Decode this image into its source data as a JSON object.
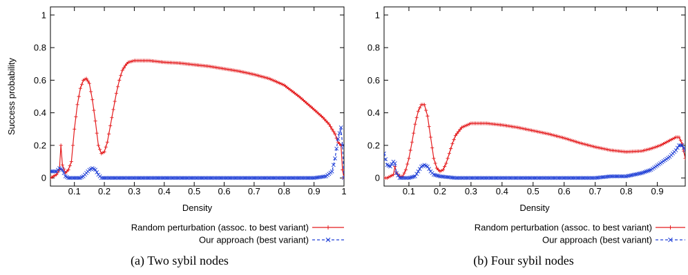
{
  "chart_data": [
    {
      "type": "line",
      "caption": "(a)  Two sybil nodes",
      "xlabel": "Density",
      "ylabel": "Success probability",
      "xlim": [
        0.02,
        1.0
      ],
      "ylim": [
        -0.05,
        1.05
      ],
      "x_ticks": [
        "0.1",
        "0.2",
        "0.3",
        "0.4",
        "0.5",
        "0.6",
        "0.7",
        "0.8",
        "0.9",
        "1"
      ],
      "y_ticks": [
        "0",
        "0.2",
        "0.4",
        "0.6",
        "0.8",
        "1"
      ],
      "legend_position": "bottom-right, below plot",
      "series": [
        {
          "name": "Random perturbation (assoc. to best variant)",
          "color": "#e41a1c",
          "marker": "plus",
          "dash": "solid",
          "points": [
            [
              0.02,
              0.0
            ],
            [
              0.03,
              0.01
            ],
            [
              0.04,
              0.02
            ],
            [
              0.05,
              0.05
            ],
            [
              0.055,
              0.2
            ],
            [
              0.06,
              0.08
            ],
            [
              0.07,
              0.03
            ],
            [
              0.08,
              0.05
            ],
            [
              0.09,
              0.1
            ],
            [
              0.1,
              0.3
            ],
            [
              0.11,
              0.45
            ],
            [
              0.12,
              0.55
            ],
            [
              0.13,
              0.6
            ],
            [
              0.14,
              0.61
            ],
            [
              0.15,
              0.58
            ],
            [
              0.16,
              0.48
            ],
            [
              0.17,
              0.35
            ],
            [
              0.18,
              0.2
            ],
            [
              0.19,
              0.15
            ],
            [
              0.2,
              0.16
            ],
            [
              0.21,
              0.22
            ],
            [
              0.22,
              0.32
            ],
            [
              0.23,
              0.42
            ],
            [
              0.24,
              0.52
            ],
            [
              0.25,
              0.6
            ],
            [
              0.26,
              0.66
            ],
            [
              0.27,
              0.69
            ],
            [
              0.28,
              0.71
            ],
            [
              0.3,
              0.72
            ],
            [
              0.35,
              0.72
            ],
            [
              0.4,
              0.71
            ],
            [
              0.45,
              0.705
            ],
            [
              0.5,
              0.695
            ],
            [
              0.55,
              0.685
            ],
            [
              0.6,
              0.67
            ],
            [
              0.65,
              0.655
            ],
            [
              0.7,
              0.635
            ],
            [
              0.75,
              0.61
            ],
            [
              0.8,
              0.57
            ],
            [
              0.85,
              0.5
            ],
            [
              0.9,
              0.42
            ],
            [
              0.93,
              0.37
            ],
            [
              0.95,
              0.33
            ],
            [
              0.97,
              0.27
            ],
            [
              0.98,
              0.22
            ],
            [
              0.99,
              0.2
            ],
            [
              0.995,
              0.05
            ],
            [
              1.0,
              0.0
            ]
          ]
        },
        {
          "name": "Our approach (best variant)",
          "color": "#1f3fd6",
          "marker": "cross",
          "dash": "dashed",
          "points": [
            [
              0.02,
              0.04
            ],
            [
              0.03,
              0.04
            ],
            [
              0.04,
              0.04
            ],
            [
              0.05,
              0.06
            ],
            [
              0.06,
              0.05
            ],
            [
              0.07,
              0.01
            ],
            [
              0.08,
              0.0
            ],
            [
              0.1,
              0.0
            ],
            [
              0.12,
              0.0
            ],
            [
              0.13,
              0.01
            ],
            [
              0.14,
              0.03
            ],
            [
              0.15,
              0.05
            ],
            [
              0.16,
              0.06
            ],
            [
              0.17,
              0.05
            ],
            [
              0.18,
              0.02
            ],
            [
              0.19,
              0.0
            ],
            [
              0.2,
              0.0
            ],
            [
              0.3,
              0.0
            ],
            [
              0.4,
              0.0
            ],
            [
              0.5,
              0.0
            ],
            [
              0.6,
              0.0
            ],
            [
              0.7,
              0.0
            ],
            [
              0.8,
              0.0
            ],
            [
              0.9,
              0.0
            ],
            [
              0.94,
              0.01
            ],
            [
              0.96,
              0.04
            ],
            [
              0.97,
              0.12
            ],
            [
              0.98,
              0.24
            ],
            [
              0.99,
              0.31
            ],
            [
              0.995,
              0.2
            ],
            [
              1.0,
              0.0
            ]
          ]
        }
      ]
    },
    {
      "type": "line",
      "caption": "(b)  Four sybil nodes",
      "xlabel": "Density",
      "ylabel": "",
      "xlim": [
        0.02,
        0.99
      ],
      "ylim": [
        -0.05,
        1.05
      ],
      "x_ticks": [
        "0.1",
        "0.2",
        "0.3",
        "0.4",
        "0.5",
        "0.6",
        "0.7",
        "0.8",
        "0.9"
      ],
      "y_ticks": [
        "0",
        "0.2",
        "0.4",
        "0.6",
        "0.8",
        "1"
      ],
      "legend_position": "bottom-right, below plot",
      "series": [
        {
          "name": "Random perturbation (assoc. to best variant)",
          "color": "#e41a1c",
          "marker": "plus",
          "dash": "solid",
          "points": [
            [
              0.02,
              0.0
            ],
            [
              0.03,
              0.0
            ],
            [
              0.04,
              0.01
            ],
            [
              0.05,
              0.02
            ],
            [
              0.055,
              0.07
            ],
            [
              0.06,
              0.03
            ],
            [
              0.07,
              0.01
            ],
            [
              0.08,
              0.01
            ],
            [
              0.09,
              0.05
            ],
            [
              0.1,
              0.12
            ],
            [
              0.11,
              0.22
            ],
            [
              0.12,
              0.33
            ],
            [
              0.13,
              0.41
            ],
            [
              0.14,
              0.45
            ],
            [
              0.15,
              0.45
            ],
            [
              0.16,
              0.38
            ],
            [
              0.17,
              0.25
            ],
            [
              0.18,
              0.12
            ],
            [
              0.19,
              0.06
            ],
            [
              0.2,
              0.04
            ],
            [
              0.21,
              0.05
            ],
            [
              0.22,
              0.09
            ],
            [
              0.23,
              0.15
            ],
            [
              0.24,
              0.21
            ],
            [
              0.25,
              0.26
            ],
            [
              0.27,
              0.31
            ],
            [
              0.3,
              0.335
            ],
            [
              0.35,
              0.335
            ],
            [
              0.4,
              0.325
            ],
            [
              0.45,
              0.31
            ],
            [
              0.5,
              0.29
            ],
            [
              0.55,
              0.27
            ],
            [
              0.6,
              0.245
            ],
            [
              0.65,
              0.215
            ],
            [
              0.7,
              0.19
            ],
            [
              0.75,
              0.17
            ],
            [
              0.8,
              0.16
            ],
            [
              0.85,
              0.165
            ],
            [
              0.88,
              0.18
            ],
            [
              0.91,
              0.2
            ],
            [
              0.94,
              0.23
            ],
            [
              0.96,
              0.25
            ],
            [
              0.97,
              0.25
            ],
            [
              0.98,
              0.21
            ],
            [
              0.99,
              0.12
            ]
          ]
        },
        {
          "name": "Our approach (best variant)",
          "color": "#1f3fd6",
          "marker": "cross",
          "dash": "dashed",
          "points": [
            [
              0.02,
              0.15
            ],
            [
              0.03,
              0.08
            ],
            [
              0.04,
              0.07
            ],
            [
              0.05,
              0.1
            ],
            [
              0.055,
              0.09
            ],
            [
              0.06,
              0.03
            ],
            [
              0.07,
              0.0
            ],
            [
              0.08,
              0.0
            ],
            [
              0.1,
              0.0
            ],
            [
              0.12,
              0.01
            ],
            [
              0.13,
              0.04
            ],
            [
              0.14,
              0.07
            ],
            [
              0.15,
              0.08
            ],
            [
              0.16,
              0.07
            ],
            [
              0.17,
              0.04
            ],
            [
              0.18,
              0.02
            ],
            [
              0.2,
              0.01
            ],
            [
              0.25,
              0.0
            ],
            [
              0.3,
              0.0
            ],
            [
              0.4,
              0.0
            ],
            [
              0.5,
              0.0
            ],
            [
              0.6,
              0.0
            ],
            [
              0.7,
              0.0
            ],
            [
              0.75,
              0.01
            ],
            [
              0.8,
              0.01
            ],
            [
              0.85,
              0.03
            ],
            [
              0.88,
              0.05
            ],
            [
              0.91,
              0.09
            ],
            [
              0.94,
              0.13
            ],
            [
              0.96,
              0.17
            ],
            [
              0.97,
              0.2
            ],
            [
              0.98,
              0.2
            ],
            [
              0.99,
              0.17
            ]
          ]
        }
      ]
    }
  ]
}
